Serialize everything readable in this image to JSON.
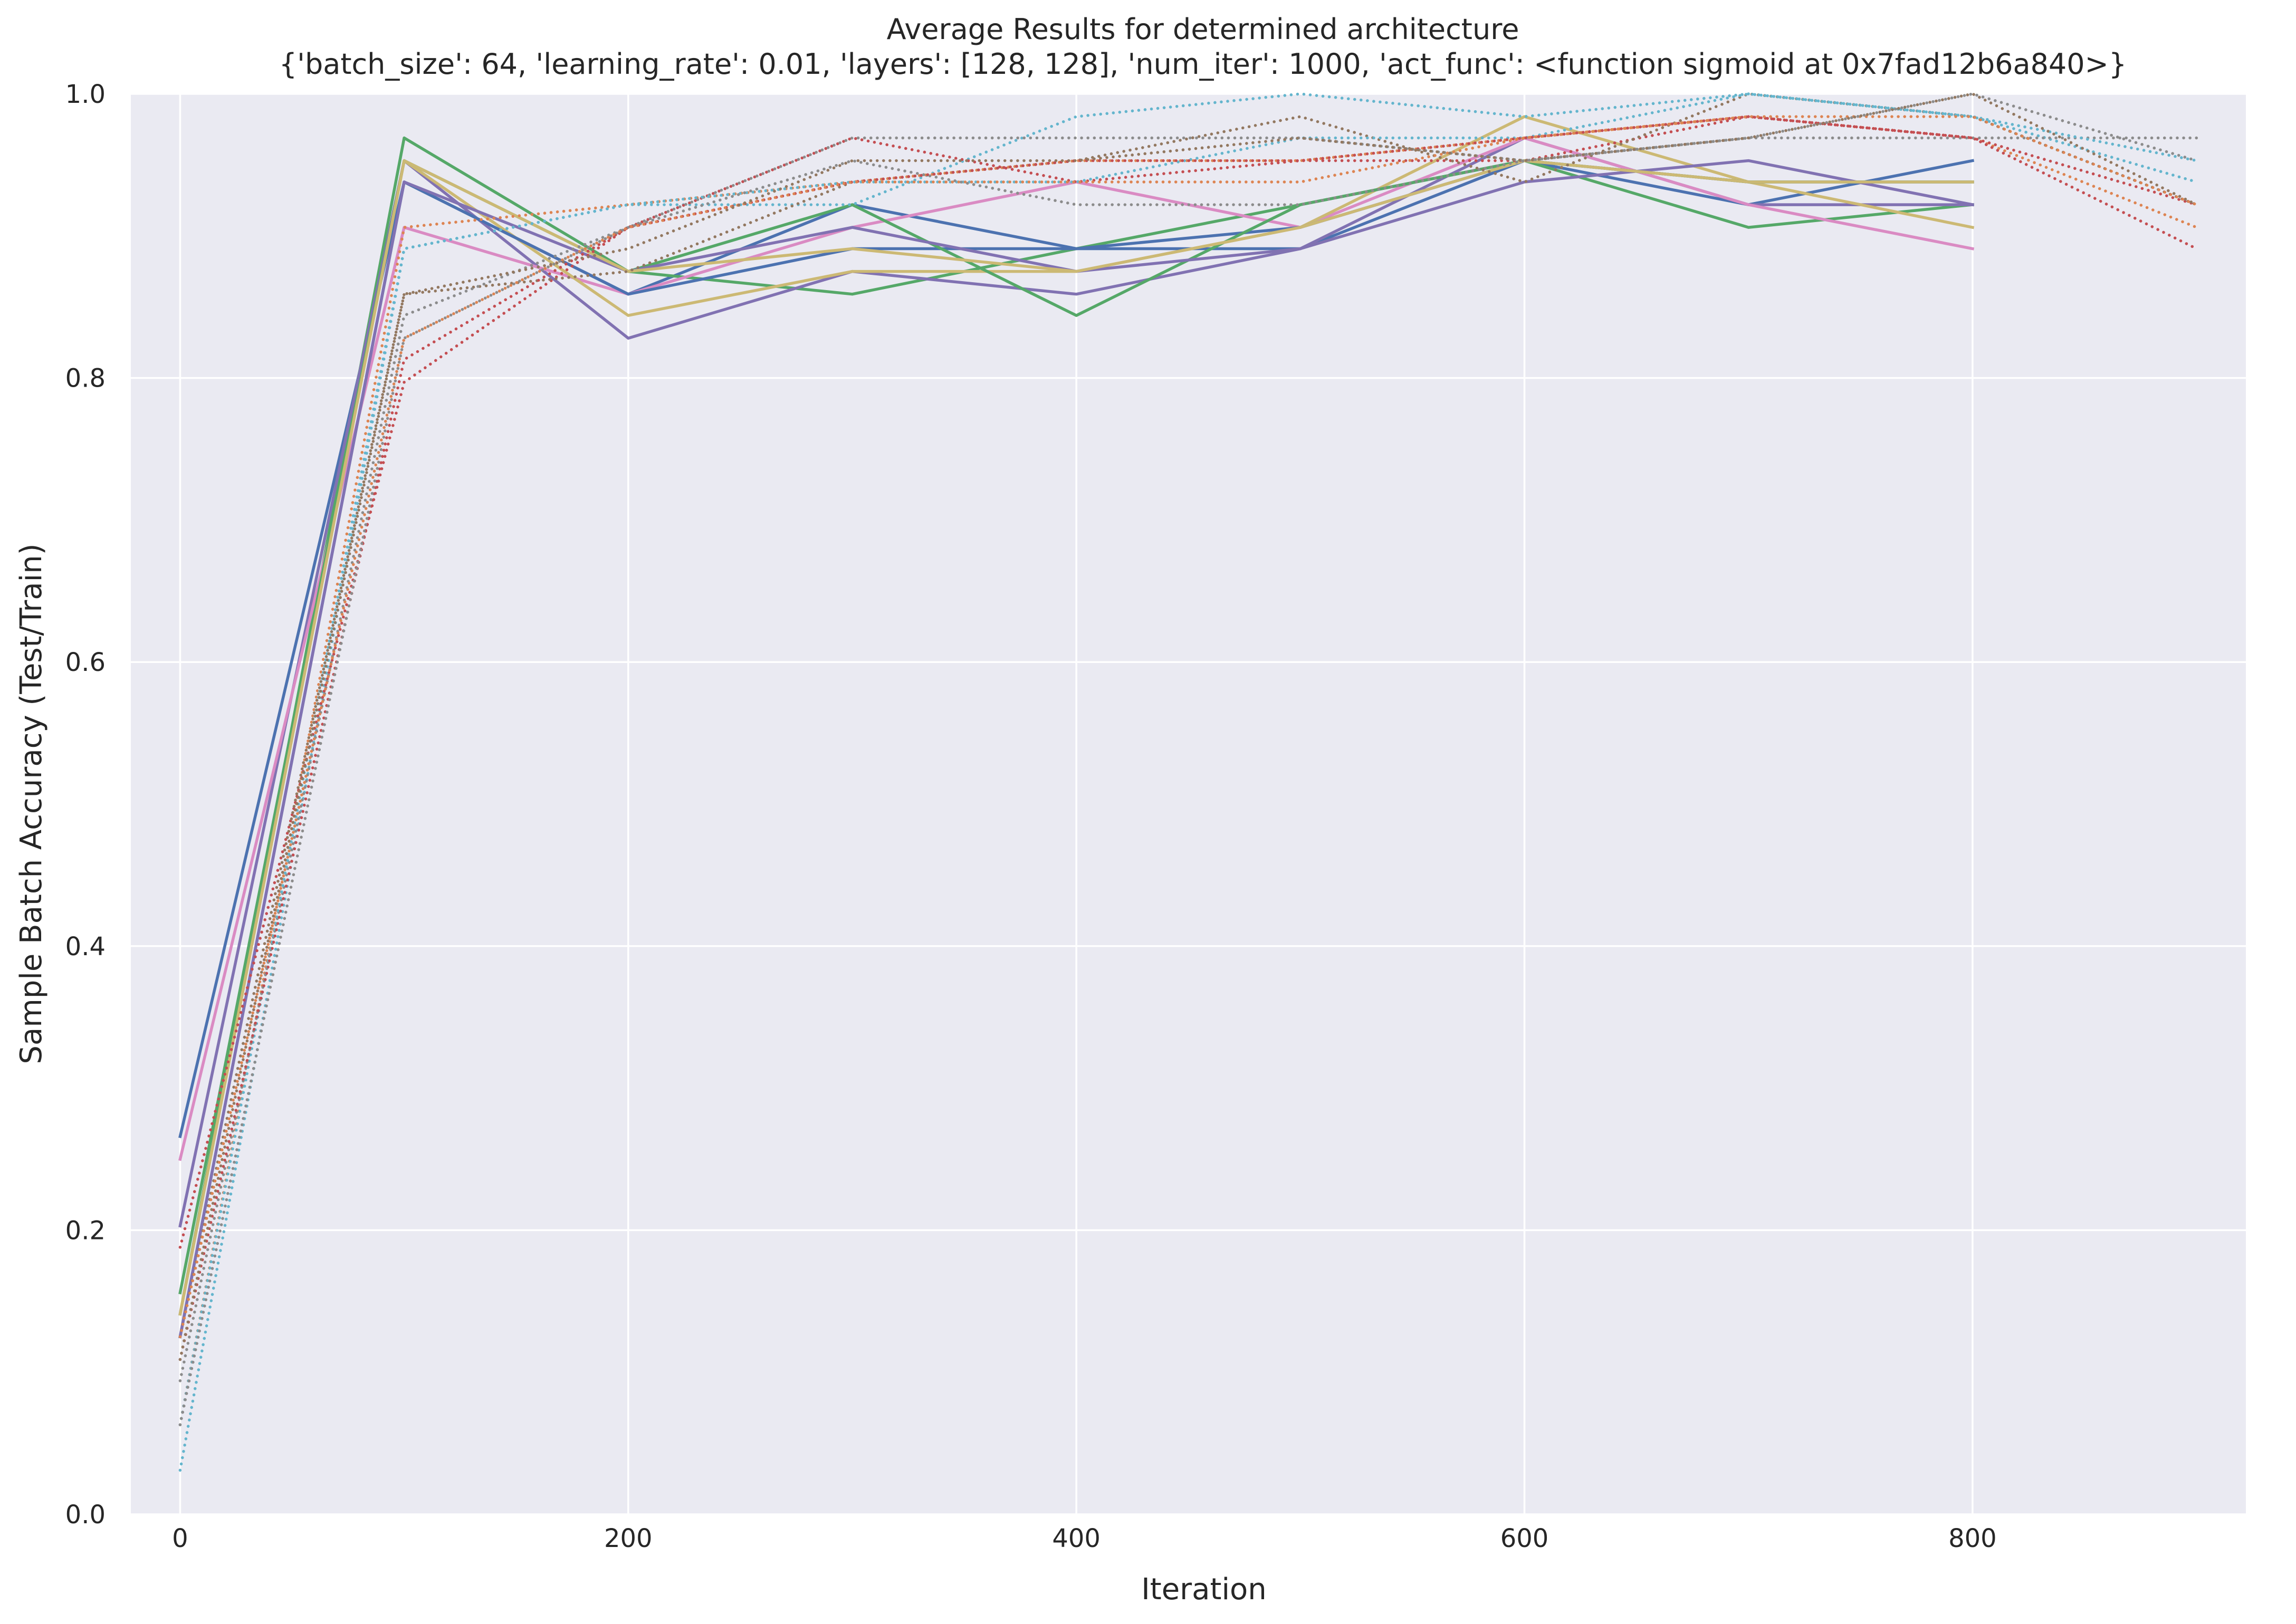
{
  "chart_data": {
    "type": "line",
    "title": "Average Results for determined architecture",
    "subtitle": "{'batch_size': 64, 'learning_rate': 0.01, 'layers': [128, 128], 'num_iter': 1000, 'act_func': <function sigmoid at 0x7fad12b6a840>}",
    "xlabel": "Iteration",
    "ylabel": "Sample Batch Accuracy (Test/Train)",
    "xlim": [
      -22,
      922
    ],
    "ylim": [
      0,
      1
    ],
    "x_ticks": [
      0,
      200,
      400,
      600,
      800
    ],
    "y_ticks": [
      0.0,
      0.2,
      0.4,
      0.6,
      0.8,
      1.0
    ],
    "x_tick_labels": [
      "0",
      "200",
      "400",
      "600",
      "800"
    ],
    "y_tick_labels": [
      "0.0",
      "0.2",
      "0.4",
      "0.6",
      "0.8",
      "1.0"
    ],
    "grid": true,
    "background": "#eaeaf2",
    "grid_color": "#ffffff",
    "series": [
      {
        "style": "solid",
        "color": "#4c72b0",
        "x": [
          0,
          100,
          200,
          300,
          400,
          500,
          600,
          700,
          800
        ],
        "y": [
          0.266,
          0.938,
          0.859,
          0.922,
          0.891,
          0.891,
          0.953,
          0.922,
          0.953
        ]
      },
      {
        "style": "solid",
        "color": "#55a868",
        "x": [
          0,
          100,
          200,
          300,
          400,
          500,
          600,
          700,
          800
        ],
        "y": [
          0.141,
          0.969,
          0.875,
          0.859,
          0.891,
          0.922,
          0.953,
          0.906,
          0.922
        ]
      },
      {
        "style": "solid",
        "color": "#8172b2",
        "x": [
          0,
          100,
          200,
          300,
          400,
          500,
          600,
          700,
          800
        ],
        "y": [
          0.203,
          0.953,
          0.828,
          0.875,
          0.859,
          0.891,
          0.969,
          0.922,
          0.922
        ]
      },
      {
        "style": "solid",
        "color": "#da8bc3",
        "x": [
          0,
          100,
          200,
          300,
          400,
          500,
          600,
          700,
          800
        ],
        "y": [
          0.25,
          0.906,
          0.859,
          0.906,
          0.938,
          0.906,
          0.969,
          0.922,
          0.891
        ]
      },
      {
        "style": "solid",
        "color": "#ccb974",
        "x": [
          0,
          100,
          200,
          300,
          400,
          500,
          600,
          700,
          800
        ],
        "y": [
          0.141,
          0.953,
          0.844,
          0.875,
          0.875,
          0.906,
          0.984,
          0.938,
          0.906
        ]
      },
      {
        "style": "solid",
        "color": "#4c72b0",
        "x": [
          0,
          100,
          200,
          300,
          400,
          500,
          600,
          700,
          800
        ],
        "y": [
          0.125,
          0.938,
          0.859,
          0.891,
          0.891,
          0.906,
          0.953,
          0.938,
          0.938
        ]
      },
      {
        "style": "solid",
        "color": "#55a868",
        "x": [
          0,
          100,
          200,
          300,
          400,
          500,
          600,
          700,
          800
        ],
        "y": [
          0.156,
          0.953,
          0.875,
          0.922,
          0.844,
          0.922,
          0.953,
          0.938,
          0.938
        ]
      },
      {
        "style": "solid",
        "color": "#8172b2",
        "x": [
          0,
          100,
          200,
          300,
          400,
          500,
          600,
          700,
          800
        ],
        "y": [
          0.125,
          0.938,
          0.875,
          0.906,
          0.875,
          0.891,
          0.938,
          0.953,
          0.922
        ]
      },
      {
        "style": "solid",
        "color": "#ccb974",
        "x": [
          0,
          100,
          200,
          300,
          400,
          500,
          600,
          700,
          800
        ],
        "y": [
          0.141,
          0.953,
          0.875,
          0.891,
          0.875,
          0.906,
          0.953,
          0.938,
          0.938
        ]
      },
      {
        "style": "dotted",
        "color": "#64b5cd",
        "x": [
          0,
          100,
          200,
          300,
          400,
          500,
          600,
          700,
          800,
          900
        ],
        "y": [
          0.031,
          0.891,
          0.922,
          0.922,
          0.984,
          1.0,
          0.984,
          1.0,
          0.984,
          0.938
        ]
      },
      {
        "style": "dotted",
        "color": "#dd8452",
        "x": [
          0,
          100,
          200,
          300,
          400,
          500,
          600,
          700,
          800,
          900
        ],
        "y": [
          0.063,
          0.906,
          0.922,
          0.938,
          0.953,
          0.953,
          0.969,
          0.984,
          0.969,
          0.906
        ]
      },
      {
        "style": "dotted",
        "color": "#c44e52",
        "x": [
          0,
          100,
          200,
          300,
          400,
          500,
          600,
          700,
          800,
          900
        ],
        "y": [
          0.188,
          0.797,
          0.906,
          0.969,
          0.938,
          0.953,
          0.953,
          0.984,
          0.969,
          0.891
        ]
      },
      {
        "style": "dotted",
        "color": "#937860",
        "x": [
          0,
          100,
          200,
          300,
          400,
          500,
          600,
          700,
          800,
          900
        ],
        "y": [
          0.125,
          0.859,
          0.875,
          0.938,
          0.953,
          0.984,
          0.938,
          1.0,
          0.984,
          0.922
        ]
      },
      {
        "style": "dotted",
        "color": "#8c8c8c",
        "x": [
          0,
          100,
          200,
          300,
          400,
          500,
          600,
          700,
          800,
          900
        ],
        "y": [
          0.094,
          0.844,
          0.906,
          0.969,
          0.969,
          0.969,
          0.953,
          0.969,
          0.969,
          0.969
        ]
      },
      {
        "style": "dotted",
        "color": "#64b5cd",
        "x": [
          0,
          100,
          200,
          300,
          400,
          500,
          600,
          700,
          800,
          900
        ],
        "y": [
          0.063,
          0.891,
          0.922,
          0.938,
          0.938,
          0.969,
          0.969,
          1.0,
          0.984,
          0.953
        ]
      },
      {
        "style": "dotted",
        "color": "#c44e52",
        "x": [
          0,
          100,
          200,
          300,
          400,
          500,
          600,
          700,
          800,
          900
        ],
        "y": [
          0.109,
          0.813,
          0.906,
          0.938,
          0.953,
          0.953,
          0.969,
          0.984,
          0.969,
          0.922
        ]
      },
      {
        "style": "dotted",
        "color": "#dd8452",
        "x": [
          0,
          100,
          200,
          300,
          400,
          500,
          600,
          700,
          800,
          900
        ],
        "y": [
          0.125,
          0.828,
          0.906,
          0.938,
          0.938,
          0.938,
          0.969,
          0.984,
          0.984,
          0.922
        ]
      },
      {
        "style": "dotted",
        "color": "#8c8c8c",
        "x": [
          0,
          100,
          200,
          300,
          400,
          500,
          600,
          700,
          800,
          900
        ],
        "y": [
          0.063,
          0.828,
          0.906,
          0.953,
          0.922,
          0.922,
          0.953,
          0.969,
          1.0,
          0.953
        ]
      },
      {
        "style": "dotted",
        "color": "#937860",
        "x": [
          0,
          100,
          200,
          300,
          400,
          500,
          600,
          700,
          800,
          900
        ],
        "y": [
          0.109,
          0.859,
          0.891,
          0.953,
          0.953,
          0.969,
          0.953,
          0.969,
          1.0,
          0.922
        ]
      }
    ]
  }
}
